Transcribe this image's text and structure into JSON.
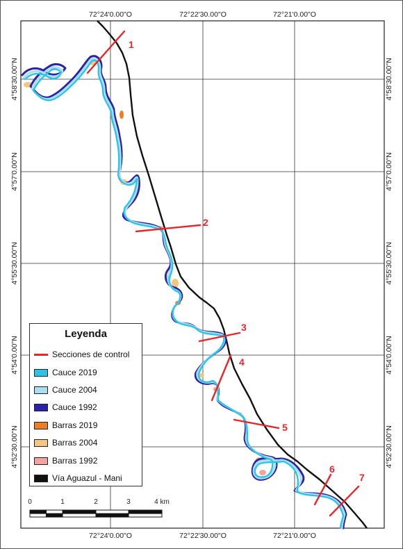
{
  "colors": {
    "cauce_2019": "#2ec4e6",
    "cauce_2004": "#a9dff0",
    "cauce_1992": "#2a22a8",
    "barras_2019": "#f07d22",
    "barras_2004": "#f6c681",
    "barras_1992": "#f3a3a0",
    "via": "#111111",
    "secciones": "#e8262a",
    "grid": "#333333"
  },
  "coords": {
    "top": [
      "72°24'0.00\"O",
      "72°22'30.00\"O",
      "72°21'0.00\"O"
    ],
    "bottom": [
      "72°24'0.00\"O",
      "72°22'30.00\"O",
      "72°21'0.00\"O"
    ],
    "left": [
      "4°58'30.00\"N",
      "4°57'0.00\"N",
      "4°55'30.00\"N",
      "4°54'0.00\"N",
      "4°52'30.00\"N"
    ],
    "right": [
      "4°58'30.00\"N",
      "4°57'0.00\"N",
      "4°55'30.00\"N",
      "4°54'0.00\"N",
      "4°52'30.00\"N"
    ]
  },
  "sections": [
    "1",
    "2",
    "3",
    "4",
    "5",
    "6",
    "7"
  ],
  "legend": {
    "title": "Leyenda",
    "items": [
      {
        "label": "Secciones de control",
        "icon": "line"
      },
      {
        "label": "Cauce 2019",
        "icon": "swatch"
      },
      {
        "label": "Cauce 2004",
        "icon": "swatch"
      },
      {
        "label": "Cauce 1992",
        "icon": "swatch"
      },
      {
        "label": "Barras 2019",
        "icon": "swatch"
      },
      {
        "label": "Barras 2004",
        "icon": "swatch"
      },
      {
        "label": "Barras 1992",
        "icon": "swatch"
      },
      {
        "label": "Vía Aguazul - Mani",
        "icon": "swatch"
      }
    ]
  },
  "scale": {
    "ticks": [
      "0",
      "1",
      "2",
      "3",
      "4 km"
    ]
  }
}
